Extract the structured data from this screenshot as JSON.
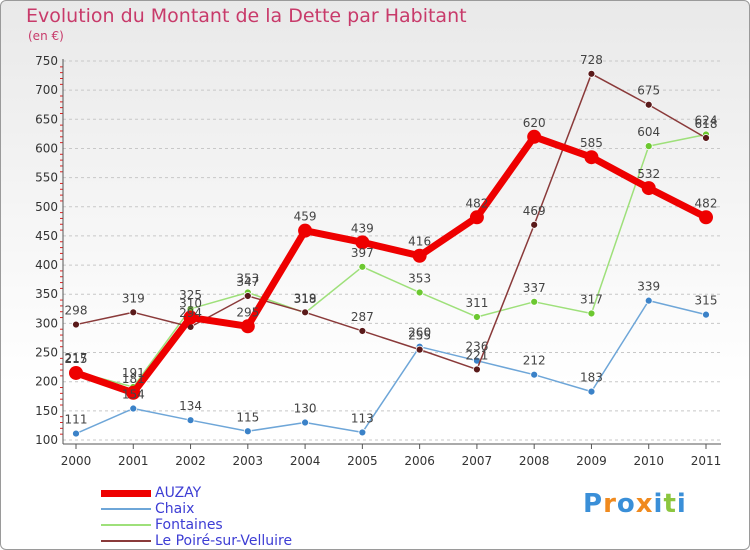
{
  "header": {
    "title": "Evolution du Montant de la Dette par Habitant",
    "subtitle": "(en €)"
  },
  "colors": {
    "title": "#c83a6a",
    "axis_text": "#333333",
    "legend_text": "#3d3dd4",
    "grid": "#c8c8c8",
    "tick_red": "#e02020"
  },
  "logo": {
    "letters": [
      "P",
      "r",
      "o",
      "x",
      "i",
      "t",
      "i"
    ],
    "colors": [
      "#3a8fd8",
      "#f08a1e",
      "#3a8fd8",
      "#f08a1e",
      "#3a8fd8",
      "#8cc63f",
      "#3a8fd8"
    ]
  },
  "chart_data": {
    "type": "line",
    "title": "Evolution du Montant de la Dette par Habitant",
    "subtitle": "(en €)",
    "x": [
      "2000",
      "2001",
      "2002",
      "2003",
      "2004",
      "2005",
      "2006",
      "2007",
      "2008",
      "2009",
      "2010",
      "2011"
    ],
    "ylim": [
      100,
      750
    ],
    "yticks": [
      "100",
      "150",
      "200",
      "250",
      "300",
      "350",
      "400",
      "450",
      "500",
      "550",
      "600",
      "650",
      "700",
      "750"
    ],
    "grid": "horizontal dashed",
    "legend_position": "bottom-left",
    "series": [
      {
        "name": "AUZAY",
        "color": "#ee0000",
        "width": 7,
        "marker": 7,
        "values": [
          215,
          181,
          310,
          295,
          459,
          439,
          416,
          482,
          620,
          585,
          532,
          482
        ],
        "labels": [
          "215",
          "181",
          "310",
          "295",
          "459",
          "439",
          "416",
          "482",
          "620",
          "585",
          "532",
          "482"
        ]
      },
      {
        "name": "Chaix",
        "color": "#6ea6d8",
        "marker_color": "#3b82c8",
        "width": 1.5,
        "marker": 3.5,
        "values": [
          111,
          154,
          134,
          115,
          130,
          113,
          260,
          236,
          212,
          183,
          339,
          315
        ],
        "labels": [
          "111",
          "154",
          "134",
          "115",
          "130",
          "113",
          "260",
          "236",
          "212",
          "183",
          "339",
          "315"
        ]
      },
      {
        "name": "Fontaines",
        "color": "#9ee07a",
        "marker_color": "#6cc830",
        "width": 1.5,
        "marker": 3.5,
        "values": [
          217,
          191,
          325,
          353,
          318,
          397,
          353,
          311,
          337,
          317,
          604,
          624
        ],
        "labels": [
          "217",
          "191",
          "325",
          "353",
          "318",
          "397",
          "353",
          "311",
          "337",
          "317",
          "604",
          "624"
        ]
      },
      {
        "name": "Le Poiré-sur-Velluire",
        "color": "#8a3a3a",
        "marker_color": "#5a1a1a",
        "width": 1.5,
        "marker": 3.5,
        "values": [
          298,
          319,
          294,
          347,
          319,
          287,
          255,
          221,
          469,
          728,
          675,
          618
        ],
        "labels": [
          "298",
          "319",
          "294",
          "347",
          "319",
          "287",
          "255",
          "221",
          "469",
          "728",
          "675",
          "618"
        ]
      }
    ]
  }
}
